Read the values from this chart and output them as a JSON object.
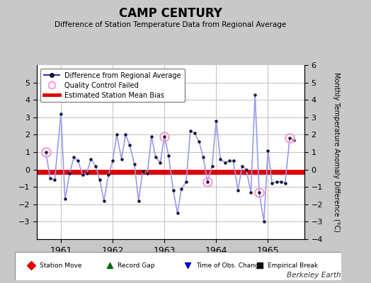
{
  "title": "CAMP CENTURY",
  "subtitle": "Difference of Station Temperature Data from Regional Average",
  "ylabel_right": "Monthly Temperature Anomaly Difference (°C)",
  "credit": "Berkeley Earth",
  "background_color": "#c8c8c8",
  "plot_bg_color": "#ffffff",
  "mean_bias": -0.12,
  "xlim": [
    1960.54,
    1965.7
  ],
  "ylim": [
    -4,
    6
  ],
  "yticks_left": [
    -3,
    -2,
    -1,
    0,
    1,
    2,
    3,
    4,
    5
  ],
  "yticks_right": [
    -4,
    -3,
    -2,
    -1,
    0,
    1,
    2,
    3,
    4,
    5,
    6
  ],
  "xtick_years": [
    1961,
    1962,
    1963,
    1964,
    1965
  ],
  "line_color": "#3333bb",
  "line_color_light": "#9999ee",
  "dot_color": "#111133",
  "qc_color": "#ff99cc",
  "bias_color": "#dd0000",
  "months": [
    1960.71,
    1960.79,
    1960.88,
    1961.0,
    1961.08,
    1961.17,
    1961.25,
    1961.33,
    1961.42,
    1961.5,
    1961.58,
    1961.67,
    1961.75,
    1961.83,
    1961.92,
    1962.0,
    1962.08,
    1962.17,
    1962.25,
    1962.33,
    1962.42,
    1962.5,
    1962.58,
    1962.67,
    1962.75,
    1962.83,
    1962.92,
    1963.0,
    1963.08,
    1963.17,
    1963.25,
    1963.33,
    1963.42,
    1963.5,
    1963.58,
    1963.67,
    1963.75,
    1963.83,
    1963.92,
    1964.0,
    1964.08,
    1964.17,
    1964.25,
    1964.33,
    1964.42,
    1964.5,
    1964.58,
    1964.67,
    1964.75,
    1964.83,
    1964.92,
    1965.0,
    1965.08,
    1965.17,
    1965.25,
    1965.33,
    1965.42,
    1965.5
  ],
  "values": [
    1.0,
    -0.5,
    -0.6,
    3.2,
    -1.7,
    -0.2,
    0.7,
    0.5,
    -0.3,
    -0.2,
    0.6,
    0.2,
    -0.6,
    -1.8,
    -0.3,
    0.5,
    2.0,
    0.6,
    2.0,
    1.4,
    0.3,
    -1.8,
    -0.1,
    -0.2,
    1.9,
    0.7,
    0.4,
    1.9,
    0.8,
    -1.2,
    -2.5,
    -1.1,
    -0.7,
    2.2,
    2.1,
    1.6,
    0.7,
    -0.7,
    0.2,
    2.8,
    0.6,
    0.4,
    0.5,
    0.5,
    -1.2,
    0.2,
    0.0,
    -1.3,
    4.3,
    -1.3,
    -3.0,
    1.1,
    -0.8,
    -0.7,
    -0.7,
    -0.8,
    1.8,
    1.7
  ],
  "qc_failed_indices": [
    0,
    27,
    37,
    49,
    56
  ],
  "bottom_legend": [
    {
      "marker": "D",
      "color": "#dd0000",
      "label": "Station Move"
    },
    {
      "marker": "^",
      "color": "#006600",
      "label": "Record Gap"
    },
    {
      "marker": "v",
      "color": "#0000cc",
      "label": "Time of Obs. Change"
    },
    {
      "marker": "s",
      "color": "#111111",
      "label": "Empirical Break"
    }
  ]
}
